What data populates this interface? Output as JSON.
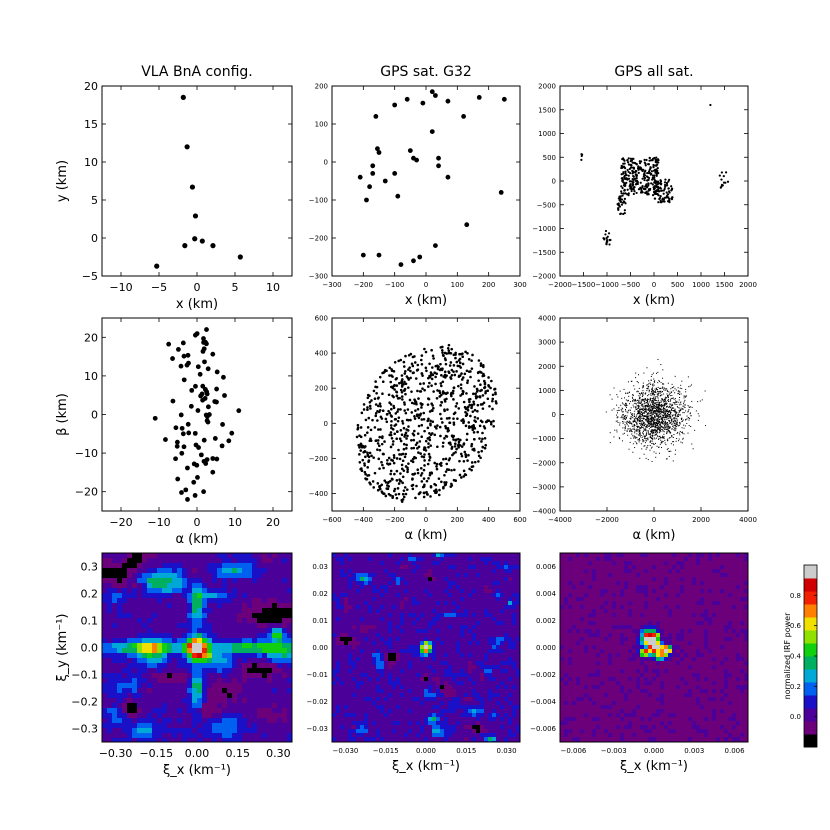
{
  "chart_data": [
    {
      "id": "p1",
      "type": "scatter",
      "title": "VLA BnA config.",
      "xlabel": "x (km)",
      "ylabel": "y (km)",
      "xlim": [
        -12.5,
        12.5
      ],
      "ylim": [
        -5,
        20
      ],
      "xticks": [
        -10,
        -5,
        0,
        5,
        10
      ],
      "yticks": [
        -5,
        0,
        5,
        10,
        15,
        20
      ],
      "x": [
        -1.8,
        -1.3,
        -0.6,
        -0.2,
        -1.6,
        -0.3,
        0.7,
        2.1,
        5.7,
        -5.3
      ],
      "y": [
        18.5,
        12.0,
        6.7,
        2.9,
        -1.0,
        -0.1,
        -0.4,
        -1.0,
        -2.5,
        -3.7
      ]
    },
    {
      "id": "p2",
      "type": "scatter",
      "title": "GPS sat. G32",
      "xlabel": "x (km)",
      "ylabel": "",
      "xlim": [
        -300,
        300
      ],
      "ylim": [
        -300,
        200
      ],
      "xticks": [
        -300,
        -200,
        -100,
        0,
        100,
        200,
        300
      ],
      "yticks": [
        -300,
        -200,
        -100,
        0,
        100,
        200
      ],
      "x": [
        20,
        30,
        -10,
        -60,
        70,
        170,
        250,
        120,
        -160,
        -100,
        -190,
        -180,
        -155,
        -150,
        -50,
        -40,
        -30,
        20,
        40,
        40,
        70,
        -90,
        -100,
        -130,
        -170,
        -210,
        -170,
        -200,
        -150,
        -80,
        -40,
        -20,
        30,
        130,
        240
      ],
      "y": [
        185,
        175,
        155,
        165,
        160,
        170,
        165,
        120,
        120,
        150,
        -100,
        -65,
        35,
        25,
        30,
        10,
        5,
        80,
        10,
        -10,
        -40,
        -90,
        -30,
        -50,
        -30,
        -40,
        -10,
        -245,
        -245,
        -270,
        -260,
        -250,
        -220,
        -165,
        -80
      ]
    },
    {
      "id": "p3",
      "type": "scatter",
      "title": "GPS all sat.",
      "xlabel": "x (km)",
      "ylabel": "",
      "xlim": [
        -2000,
        2000
      ],
      "ylim": [
        -2000,
        2000
      ],
      "xticks": [
        -2000,
        -1500,
        -1000,
        -500,
        0,
        500,
        1000,
        1500,
        2000
      ],
      "yticks": [
        -2000,
        -1500,
        -1000,
        -500,
        0,
        500,
        1000,
        1500,
        2000
      ]
    },
    {
      "id": "p4",
      "type": "scatter",
      "title": "",
      "xlabel": "α (km)",
      "ylabel": "β (km)",
      "xlim": [
        -25,
        25
      ],
      "ylim": [
        -25,
        25
      ],
      "xticks": [
        -20,
        -10,
        0,
        10,
        20
      ],
      "yticks": [
        -20,
        -10,
        0,
        10,
        20
      ]
    },
    {
      "id": "p5",
      "type": "scatter",
      "title": "",
      "xlabel": "α (km)",
      "ylabel": "",
      "xlim": [
        -600,
        600
      ],
      "ylim": [
        -500,
        600
      ],
      "xticks": [
        -600,
        -400,
        -200,
        0,
        200,
        400,
        600
      ],
      "yticks": [
        -400,
        -200,
        0,
        200,
        400,
        600
      ]
    },
    {
      "id": "p6",
      "type": "scatter",
      "title": "",
      "xlabel": "α (km)",
      "ylabel": "",
      "xlim": [
        -4000,
        4000
      ],
      "ylim": [
        -4000,
        4000
      ],
      "xticks": [
        -4000,
        -2000,
        0,
        2000,
        4000
      ],
      "yticks": [
        -4000,
        -3000,
        -2000,
        -1000,
        0,
        1000,
        2000,
        3000,
        4000
      ]
    },
    {
      "id": "p7",
      "type": "heatmap",
      "title": "",
      "xlabel": "ξ_x (km⁻¹)",
      "ylabel": "ξ_y (km⁻¹)",
      "xlim": [
        -0.35,
        0.35
      ],
      "ylim": [
        -0.35,
        0.35
      ],
      "xticks": [
        -0.3,
        -0.15,
        0.0,
        0.15,
        0.3
      ],
      "xtick_labels": [
        "−0.30",
        "−0.15",
        "0.00",
        "0.15",
        "0.30"
      ],
      "yticks": [
        -0.3,
        -0.2,
        -0.1,
        0.0,
        0.1,
        0.2,
        0.3
      ],
      "ytick_labels": [
        "−0.3",
        "−0.2",
        "−0.1",
        "0.0",
        "0.1",
        "0.2",
        "0.3"
      ]
    },
    {
      "id": "p8",
      "type": "heatmap",
      "title": "",
      "xlabel": "ξ_x (km⁻¹)",
      "ylabel": "",
      "xlim": [
        -0.035,
        0.035
      ],
      "ylim": [
        -0.035,
        0.035
      ],
      "xticks": [
        -0.03,
        -0.015,
        0.0,
        0.015,
        0.03
      ],
      "xtick_labels": [
        "−0.030",
        "−0.015",
        "0.000",
        "0.015",
        "0.030"
      ],
      "yticks": [
        -0.03,
        -0.02,
        -0.01,
        0.0,
        0.01,
        0.02,
        0.03
      ],
      "ytick_labels": [
        "−0.03",
        "−0.02",
        "−0.01",
        "0.00",
        "0.01",
        "0.02",
        "0.03"
      ]
    },
    {
      "id": "p9",
      "type": "heatmap",
      "title": "",
      "xlabel": "ξ_x (km⁻¹)",
      "ylabel": "",
      "xlim": [
        -0.007,
        0.007
      ],
      "ylim": [
        -0.007,
        0.007
      ],
      "xticks": [
        -0.006,
        -0.003,
        0.0,
        0.003,
        0.006
      ],
      "xtick_labels": [
        "−0.006",
        "−0.003",
        "0.000",
        "0.003",
        "0.006"
      ],
      "yticks": [
        -0.006,
        -0.004,
        -0.002,
        0.0,
        0.002,
        0.004,
        0.006
      ],
      "ytick_labels": [
        "−0.006",
        "−0.004",
        "−0.002",
        "0.000",
        "0.002",
        "0.004",
        "0.006"
      ]
    }
  ],
  "colorbar": {
    "label": "normalized IRF power",
    "range": [
      -0.2,
      1.0
    ],
    "ticks": [
      0.0,
      0.2,
      0.4,
      0.6,
      0.8
    ],
    "tick_labels": [
      "0.0",
      "0.2",
      "0.4",
      "0.6",
      "0.8"
    ],
    "colors": [
      "#000000",
      "#6c007a",
      "#4b009a",
      "#1a10c8",
      "#0060f0",
      "#00a8d8",
      "#00b060",
      "#10d010",
      "#90e000",
      "#f0e000",
      "#ff8000",
      "#f02000",
      "#d00000",
      "#cccccc"
    ]
  }
}
